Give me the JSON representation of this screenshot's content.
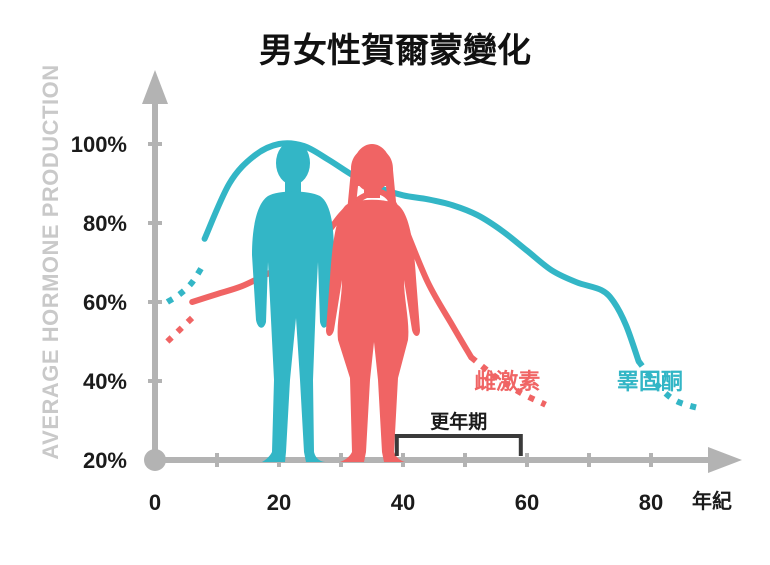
{
  "chart_data": {
    "type": "line",
    "title": "男女性賀爾蒙變化",
    "ylabel": "AVERAGE HORMONE PRODUCTION",
    "xlabel": "年紀",
    "x_ticks": [
      0,
      20,
      40,
      60,
      80
    ],
    "y_ticks": [
      "20%",
      "40%",
      "60%",
      "80%",
      "100%"
    ],
    "xlim": [
      0,
      90
    ],
    "ylim": [
      20,
      105
    ],
    "grid": false,
    "legend": "inline labels",
    "series": [
      {
        "name": "睪固酮",
        "color": "#33b6c6",
        "dotted_start": [
          [
            2,
            60
          ],
          [
            4,
            62
          ],
          [
            6,
            65
          ],
          [
            8,
            70
          ]
        ],
        "x": [
          8,
          12,
          16,
          20,
          24,
          28,
          32,
          36,
          40,
          44,
          48,
          52,
          56,
          60,
          64,
          68,
          72,
          74,
          76,
          78
        ],
        "y": [
          76,
          90,
          97,
          100,
          99.5,
          96,
          92,
          89,
          87,
          86,
          84.5,
          82,
          78,
          73,
          68,
          65,
          63,
          60,
          54,
          45
        ],
        "dotted_end": [
          [
            78,
            45
          ],
          [
            81,
            39
          ],
          [
            84,
            35
          ],
          [
            88,
            33
          ]
        ]
      },
      {
        "name": "雌激素",
        "color": "#f06464",
        "dotted_start": [
          [
            2,
            50
          ],
          [
            4,
            53
          ],
          [
            6,
            56
          ]
        ],
        "x": [
          6,
          10,
          14,
          18,
          22,
          26,
          28,
          30,
          32,
          34,
          36,
          38,
          40,
          44,
          48,
          51
        ],
        "y": [
          60,
          62,
          64,
          67,
          70,
          75,
          78,
          82,
          85,
          87,
          88,
          86,
          80,
          65,
          54,
          46
        ],
        "dotted_end": [
          [
            51,
            46
          ],
          [
            55,
            41
          ],
          [
            59,
            37
          ],
          [
            63,
            34
          ]
        ]
      }
    ],
    "annotations": [
      {
        "text": "更年期",
        "x_range": [
          39,
          59
        ]
      }
    ]
  }
}
